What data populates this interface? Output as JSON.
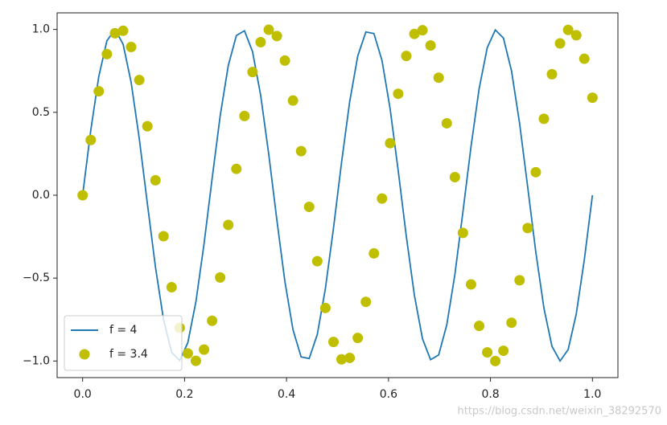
{
  "chart_data": {
    "type": "line",
    "x": [
      0,
      0.0159,
      0.0317,
      0.0476,
      0.0635,
      0.0794,
      0.0952,
      0.1111,
      0.127,
      0.1429,
      0.1587,
      0.1746,
      0.1905,
      0.2063,
      0.2222,
      0.2381,
      0.254,
      0.2698,
      0.2857,
      0.3016,
      0.3175,
      0.3333,
      0.3492,
      0.3651,
      0.381,
      0.3968,
      0.4127,
      0.4286,
      0.4444,
      0.4603,
      0.4762,
      0.4921,
      0.5079,
      0.5238,
      0.5397,
      0.5556,
      0.5714,
      0.5873,
      0.6032,
      0.619,
      0.6349,
      0.6508,
      0.6667,
      0.6825,
      0.6984,
      0.7143,
      0.7302,
      0.746,
      0.7619,
      0.7778,
      0.7937,
      0.8095,
      0.8254,
      0.8413,
      0.8571,
      0.873,
      0.8889,
      0.9048,
      0.9206,
      0.9365,
      0.9524,
      0.9683,
      0.9841,
      1
    ],
    "series": [
      {
        "name": "f = 4",
        "type": "line",
        "color": "#1f77b4",
        "values": [
          0,
          0.389,
          0.716,
          0.931,
          1.0,
          0.911,
          0.68,
          0.342,
          -0.05,
          -0.434,
          -0.75,
          -0.948,
          -0.997,
          -0.89,
          -0.643,
          -0.295,
          0.1,
          0.478,
          0.782,
          0.963,
          0.992,
          0.866,
          0.604,
          0.247,
          -0.149,
          -0.521,
          -0.812,
          -0.975,
          -0.985,
          -0.84,
          -0.563,
          -0.198,
          0.198,
          0.563,
          0.84,
          0.985,
          0.975,
          0.812,
          0.521,
          0.149,
          -0.247,
          -0.604,
          -0.866,
          -0.992,
          -0.963,
          -0.782,
          -0.478,
          -0.1,
          0.295,
          0.643,
          0.89,
          0.997,
          0.948,
          0.75,
          0.434,
          0.05,
          -0.342,
          -0.68,
          -0.911,
          -1.0,
          -0.931,
          -0.716,
          -0.389,
          0
        ]
      },
      {
        "name": "f = 3.4",
        "type": "scatter",
        "color": "#bfbf00",
        "values": [
          0,
          0.333,
          0.627,
          0.851,
          0.977,
          0.992,
          0.894,
          0.695,
          0.416,
          0.09,
          -0.247,
          -0.555,
          -0.8,
          -0.954,
          -0.999,
          -0.931,
          -0.757,
          -0.496,
          -0.179,
          0.159,
          0.478,
          0.743,
          0.923,
          0.998,
          0.96,
          0.812,
          0.571,
          0.266,
          -0.07,
          -0.398,
          -0.68,
          -0.885,
          -0.99,
          -0.981,
          -0.861,
          -0.643,
          -0.351,
          -0.02,
          0.314,
          0.612,
          0.84,
          0.973,
          0.995,
          0.903,
          0.709,
          0.434,
          0.109,
          -0.227,
          -0.538,
          -0.788,
          -0.948,
          -1.0,
          -0.938,
          -0.769,
          -0.513,
          -0.198,
          0.139,
          0.461,
          0.73,
          0.916,
          0.997,
          0.965,
          0.823,
          0.588
        ]
      }
    ],
    "xlim": [
      -0.05,
      1.05
    ],
    "ylim": [
      -1.1,
      1.1
    ],
    "xticks": [
      {
        "value": 0.0,
        "label": "0.0"
      },
      0.2,
      0.4,
      0.6,
      0.8,
      {
        "value": 1.0,
        "label": "1.0"
      }
    ],
    "yticks": [
      {
        "value": -1.0,
        "label": "−1.0"
      },
      {
        "value": -0.5,
        "label": "−0.5"
      },
      {
        "value": 0.0,
        "label": "0.0"
      },
      0.5,
      {
        "value": 1.0,
        "label": "1.0"
      }
    ],
    "legend": "lower left",
    "watermark": "https://blog.csdn.net/weixin_38292570"
  }
}
